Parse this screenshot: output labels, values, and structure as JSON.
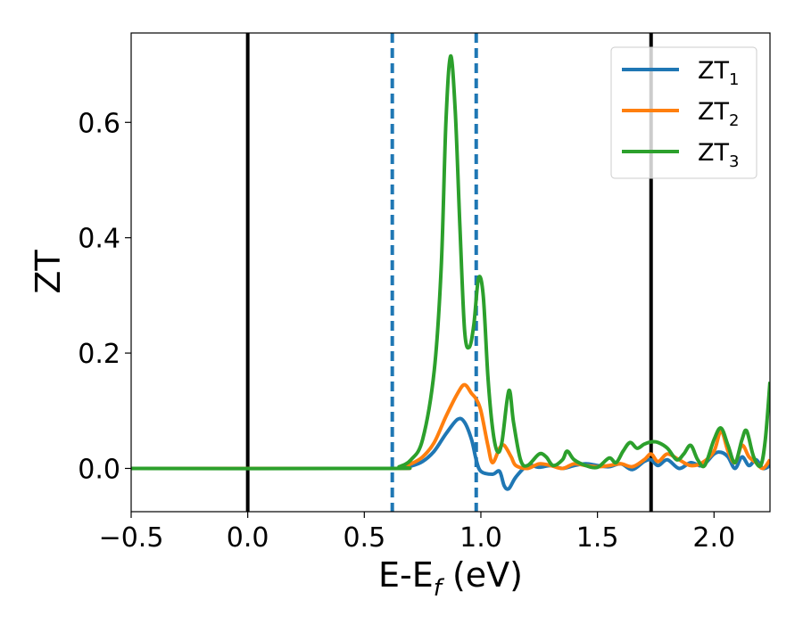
{
  "chart_data": {
    "type": "line",
    "title": "",
    "xlabel": "E-E",
    "xlabel_sub": "f",
    "xlabel_unit": " (eV)",
    "ylabel": "ZT",
    "xlim": [
      -0.5,
      2.24
    ],
    "ylim": [
      -0.075,
      0.755
    ],
    "xticks": [
      {
        "value": -0.5,
        "label": "−0.5"
      },
      {
        "value": 0.0,
        "label": "0.0"
      },
      {
        "value": 0.5,
        "label": "0.5"
      },
      {
        "value": 1.0,
        "label": "1.0"
      },
      {
        "value": 1.5,
        "label": "1.5"
      },
      {
        "value": 2.0,
        "label": "2.0"
      }
    ],
    "yticks": [
      {
        "value": 0.0,
        "label": "0.0"
      },
      {
        "value": 0.2,
        "label": "0.2"
      },
      {
        "value": 0.4,
        "label": "0.4"
      },
      {
        "value": 0.6,
        "label": "0.6"
      }
    ],
    "grid": false,
    "legend_position": "top-right",
    "vlines": [
      {
        "x": 0.0,
        "color": "#000000",
        "style": "solid"
      },
      {
        "x": 1.73,
        "color": "#000000",
        "style": "solid"
      },
      {
        "x": 0.62,
        "color": "#1f77b4",
        "style": "dashed"
      },
      {
        "x": 0.98,
        "color": "#1f77b4",
        "style": "dashed"
      }
    ],
    "series": [
      {
        "name": "ZT",
        "sub": "1",
        "color": "#1f77b4",
        "points": [
          [
            -0.5,
            0
          ],
          [
            0.6,
            0
          ],
          [
            0.65,
            0.001
          ],
          [
            0.7,
            0.004
          ],
          [
            0.75,
            0.012
          ],
          [
            0.8,
            0.03
          ],
          [
            0.85,
            0.06
          ],
          [
            0.9,
            0.085
          ],
          [
            0.93,
            0.08
          ],
          [
            0.96,
            0.05
          ],
          [
            0.98,
            0.015
          ],
          [
            1.0,
            -0.005
          ],
          [
            1.05,
            -0.01
          ],
          [
            1.08,
            -0.005
          ],
          [
            1.1,
            -0.03
          ],
          [
            1.12,
            -0.035
          ],
          [
            1.15,
            -0.015
          ],
          [
            1.2,
            0.005
          ],
          [
            1.25,
            0.002
          ],
          [
            1.3,
            0.005
          ],
          [
            1.35,
            0.0
          ],
          [
            1.4,
            0.005
          ],
          [
            1.45,
            0.008
          ],
          [
            1.5,
            0.005
          ],
          [
            1.55,
            0.003
          ],
          [
            1.6,
            0.008
          ],
          [
            1.65,
            -0.002
          ],
          [
            1.7,
            0.012
          ],
          [
            1.73,
            0.015
          ],
          [
            1.76,
            0.005
          ],
          [
            1.8,
            0.015
          ],
          [
            1.85,
            0.0
          ],
          [
            1.9,
            0.01
          ],
          [
            1.95,
            0.005
          ],
          [
            2.0,
            0.025
          ],
          [
            2.03,
            0.028
          ],
          [
            2.06,
            0.02
          ],
          [
            2.09,
            0.0
          ],
          [
            2.12,
            0.02
          ],
          [
            2.15,
            0.005
          ],
          [
            2.18,
            0.015
          ],
          [
            2.21,
            0.0
          ],
          [
            2.24,
            0.005
          ]
        ]
      },
      {
        "name": "ZT",
        "sub": "2",
        "color": "#ff7f0e",
        "points": [
          [
            -0.5,
            0
          ],
          [
            0.6,
            0
          ],
          [
            0.65,
            0.002
          ],
          [
            0.7,
            0.008
          ],
          [
            0.75,
            0.02
          ],
          [
            0.8,
            0.045
          ],
          [
            0.85,
            0.09
          ],
          [
            0.9,
            0.13
          ],
          [
            0.93,
            0.145
          ],
          [
            0.96,
            0.13
          ],
          [
            0.98,
            0.12
          ],
          [
            1.0,
            0.1
          ],
          [
            1.03,
            0.04
          ],
          [
            1.05,
            0.01
          ],
          [
            1.08,
            0.035
          ],
          [
            1.1,
            0.04
          ],
          [
            1.13,
            0.02
          ],
          [
            1.15,
            0.005
          ],
          [
            1.2,
            0.0
          ],
          [
            1.25,
            0.008
          ],
          [
            1.3,
            0.005
          ],
          [
            1.35,
            0.0
          ],
          [
            1.4,
            0.008
          ],
          [
            1.45,
            0.005
          ],
          [
            1.5,
            0.003
          ],
          [
            1.55,
            0.005
          ],
          [
            1.6,
            0.008
          ],
          [
            1.65,
            0.003
          ],
          [
            1.7,
            0.015
          ],
          [
            1.73,
            0.025
          ],
          [
            1.76,
            0.012
          ],
          [
            1.8,
            0.025
          ],
          [
            1.85,
            0.015
          ],
          [
            1.9,
            0.005
          ],
          [
            1.95,
            0.01
          ],
          [
            2.0,
            0.03
          ],
          [
            2.03,
            0.065
          ],
          [
            2.06,
            0.03
          ],
          [
            2.09,
            0.01
          ],
          [
            2.12,
            0.04
          ],
          [
            2.15,
            0.02
          ],
          [
            2.18,
            0.01
          ],
          [
            2.21,
            0.0
          ],
          [
            2.24,
            0.015
          ]
        ]
      },
      {
        "name": "ZT",
        "sub": "3",
        "color": "#2ca02c",
        "points": [
          [
            -0.5,
            0
          ],
          [
            0.6,
            0
          ],
          [
            0.65,
            0.003
          ],
          [
            0.7,
            0.015
          ],
          [
            0.75,
            0.05
          ],
          [
            0.8,
            0.17
          ],
          [
            0.83,
            0.35
          ],
          [
            0.85,
            0.6
          ],
          [
            0.87,
            0.715
          ],
          [
            0.89,
            0.62
          ],
          [
            0.91,
            0.42
          ],
          [
            0.93,
            0.24
          ],
          [
            0.95,
            0.21
          ],
          [
            0.97,
            0.25
          ],
          [
            0.99,
            0.33
          ],
          [
            1.01,
            0.3
          ],
          [
            1.03,
            0.16
          ],
          [
            1.05,
            0.07
          ],
          [
            1.07,
            0.03
          ],
          [
            1.09,
            0.045
          ],
          [
            1.12,
            0.135
          ],
          [
            1.14,
            0.08
          ],
          [
            1.17,
            0.015
          ],
          [
            1.2,
            0.005
          ],
          [
            1.25,
            0.025
          ],
          [
            1.28,
            0.02
          ],
          [
            1.31,
            0.005
          ],
          [
            1.35,
            0.015
          ],
          [
            1.37,
            0.03
          ],
          [
            1.4,
            0.015
          ],
          [
            1.45,
            0.005
          ],
          [
            1.5,
            0.002
          ],
          [
            1.55,
            0.018
          ],
          [
            1.58,
            0.01
          ],
          [
            1.61,
            0.03
          ],
          [
            1.64,
            0.045
          ],
          [
            1.67,
            0.035
          ],
          [
            1.7,
            0.042
          ],
          [
            1.73,
            0.046
          ],
          [
            1.76,
            0.045
          ],
          [
            1.8,
            0.035
          ],
          [
            1.84,
            0.015
          ],
          [
            1.87,
            0.025
          ],
          [
            1.9,
            0.04
          ],
          [
            1.93,
            0.015
          ],
          [
            1.96,
            0.005
          ],
          [
            2.0,
            0.05
          ],
          [
            2.03,
            0.07
          ],
          [
            2.06,
            0.04
          ],
          [
            2.09,
            0.01
          ],
          [
            2.12,
            0.05
          ],
          [
            2.14,
            0.065
          ],
          [
            2.17,
            0.02
          ],
          [
            2.2,
            0.005
          ],
          [
            2.22,
            0.05
          ],
          [
            2.24,
            0.15
          ]
        ]
      }
    ]
  }
}
